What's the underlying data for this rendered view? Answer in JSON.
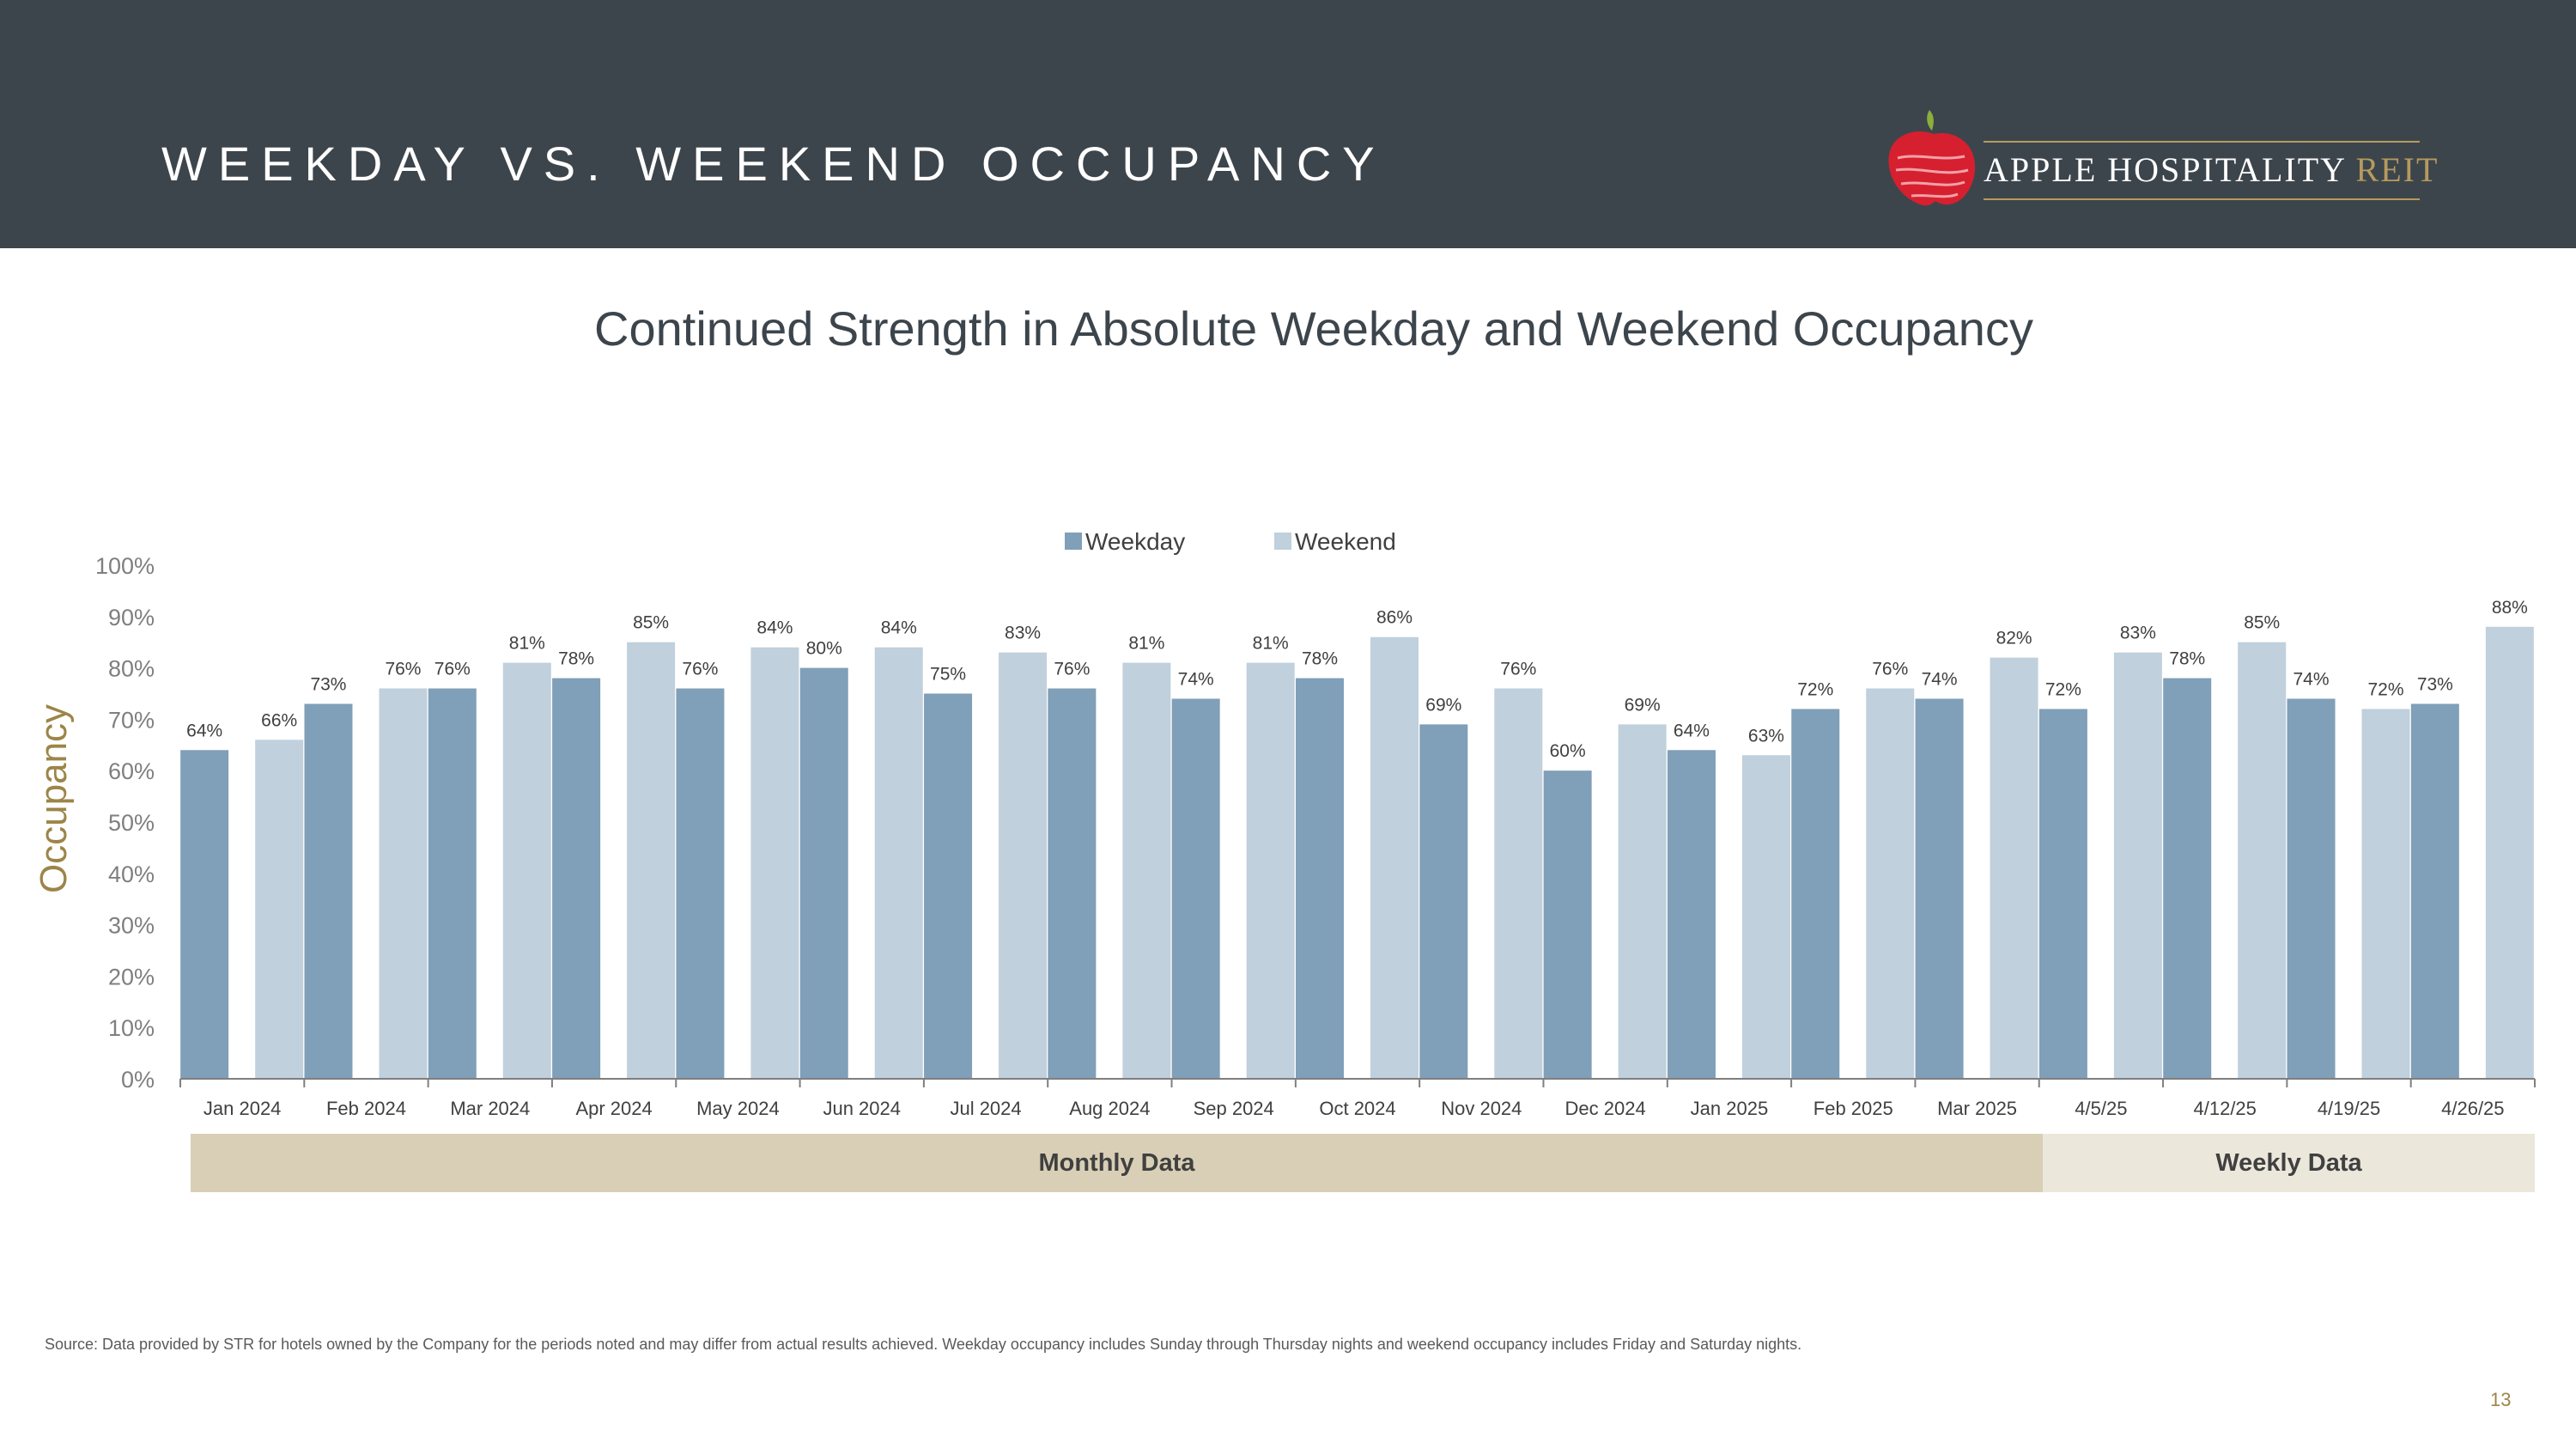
{
  "header": {
    "title": "WEEKDAY VS. WEEKEND OCCUPANCY",
    "logo_text": "APPLE HOSPITALITY",
    "logo_text_accent": "REIT"
  },
  "colors": {
    "header_bg": "#3d454c",
    "weekday": "#809fb8",
    "weekend": "#c0d0dc",
    "accent_gold": "#9c8548"
  },
  "chart_data": {
    "type": "bar",
    "title": "Continued Strength in Absolute Weekday and Weekend Occupancy",
    "ylabel": "Occupancy",
    "xlabel": "",
    "ylim": [
      0,
      100
    ],
    "ytick_labels": [
      "0%",
      "10%",
      "20%",
      "30%",
      "40%",
      "50%",
      "60%",
      "70%",
      "80%",
      "90%",
      "100%"
    ],
    "legend_position": "top-center",
    "categories": [
      "Jan 2024",
      "Feb 2024",
      "Mar 2024",
      "Apr 2024",
      "May 2024",
      "Jun 2024",
      "Jul 2024",
      "Aug 2024",
      "Sep 2024",
      "Oct 2024",
      "Nov 2024",
      "Dec 2024",
      "Jan 2025",
      "Feb 2025",
      "Mar 2025",
      "4/5/25",
      "4/12/25",
      "4/19/25",
      "4/26/25"
    ],
    "series": [
      {
        "name": "Weekday",
        "values": [
          64,
          73,
          76,
          78,
          76,
          80,
          75,
          76,
          74,
          78,
          69,
          60,
          64,
          72,
          74,
          72,
          78,
          74,
          73
        ]
      },
      {
        "name": "Weekend",
        "values": [
          66,
          76,
          81,
          85,
          84,
          84,
          83,
          81,
          81,
          86,
          76,
          69,
          63,
          76,
          82,
          83,
          85,
          72,
          88
        ]
      }
    ],
    "groups": [
      {
        "label": "Monthly Data"
      },
      {
        "label": "Weekly Data"
      }
    ]
  },
  "footer": {
    "source": "Source:  Data provided by STR for hotels owned by the Company for the periods noted and may differ from actual results achieved. Weekday occupancy includes Sunday through Thursday nights and weekend occupancy includes Friday and Saturday nights.",
    "page_number": "13"
  }
}
